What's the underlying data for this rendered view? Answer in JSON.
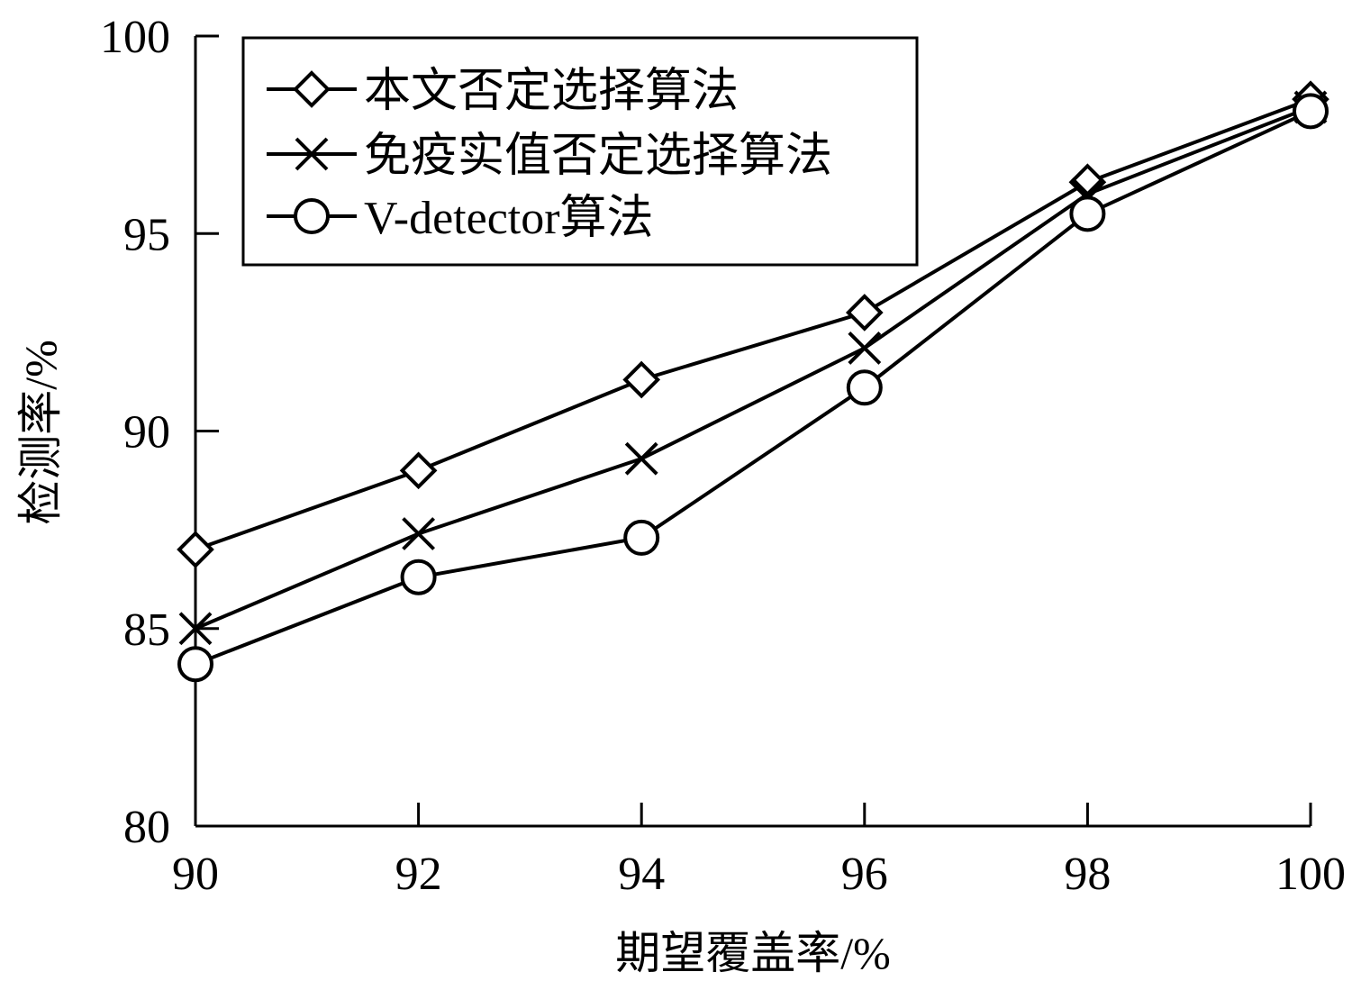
{
  "chart_data": {
    "type": "line",
    "title": "",
    "xlabel": "期望覆盖率/%",
    "ylabel": "检测率/%",
    "x": [
      90,
      92,
      94,
      96,
      98,
      100
    ],
    "xlim": [
      90,
      100
    ],
    "ylim": [
      80,
      100
    ],
    "xticks": [
      "90",
      "92",
      "94",
      "96",
      "98",
      "100"
    ],
    "yticks": [
      "80",
      "85",
      "90",
      "95",
      "100"
    ],
    "grid": false,
    "legend_position": "top-left",
    "series": [
      {
        "name": "本文否定选择算法",
        "marker": "diamond",
        "values": [
          87.0,
          89.0,
          91.3,
          93.0,
          96.3,
          98.4
        ]
      },
      {
        "name": "免疫实值否定选择算法",
        "marker": "x",
        "values": [
          85.0,
          87.4,
          89.3,
          92.1,
          96.0,
          98.2
        ]
      },
      {
        "name": "V-detector算法",
        "marker": "circle",
        "values": [
          84.1,
          86.3,
          87.3,
          91.1,
          95.5,
          98.1
        ]
      }
    ]
  }
}
